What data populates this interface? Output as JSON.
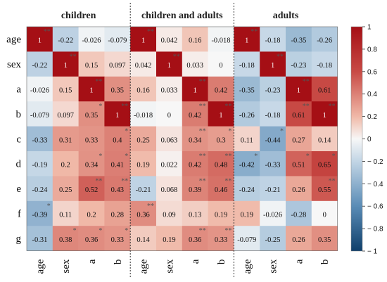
{
  "chart_data": {
    "type": "heatmap",
    "panels": [
      {
        "title": "children",
        "columns": [
          "age",
          "sex",
          "a",
          "b"
        ],
        "values": [
          [
            1,
            -0.22,
            -0.026,
            -0.079
          ],
          [
            -0.22,
            1,
            0.15,
            0.097
          ],
          [
            -0.026,
            0.15,
            1,
            0.35
          ],
          [
            -0.079,
            0.097,
            0.35,
            1
          ],
          [
            -0.33,
            0.31,
            0.33,
            0.4
          ],
          [
            -0.19,
            0.2,
            0.34,
            0.41
          ],
          [
            -0.24,
            0.25,
            0.52,
            0.43
          ],
          [
            -0.39,
            0.11,
            0.2,
            0.28
          ],
          [
            -0.31,
            0.38,
            0.36,
            0.33
          ]
        ],
        "labels": [
          [
            "1",
            "-0.22",
            "-0.026",
            "-0.079"
          ],
          [
            "-0.22",
            "1",
            "0.15",
            "0.097"
          ],
          [
            "-0.026",
            "0.15",
            "1",
            "0.35"
          ],
          [
            "-0.079",
            "0.097",
            "0.35",
            "1"
          ],
          [
            "-0.33",
            "0.31",
            "0.33",
            "0.4"
          ],
          [
            "-0.19",
            "0.2",
            "0.34",
            "0.41"
          ],
          [
            "-0.24",
            "0.25",
            "0.52",
            "0.43"
          ],
          [
            "-0.39",
            "0.11",
            "0.2",
            "0.28"
          ],
          [
            "-0.31",
            "0.38",
            "0.36",
            "0.33"
          ]
        ],
        "stars": [
          [
            "**",
            "",
            "",
            ""
          ],
          [
            "",
            "**",
            "",
            ""
          ],
          [
            "",
            "",
            "**",
            ""
          ],
          [
            "",
            "",
            "*",
            "**"
          ],
          [
            "",
            "",
            "",
            "*"
          ],
          [
            "",
            "",
            "*",
            "*"
          ],
          [
            "",
            "",
            "**",
            "**"
          ],
          [
            "*",
            "",
            "",
            ""
          ],
          [
            "",
            "*",
            "*",
            "*"
          ]
        ]
      },
      {
        "title": "children and adults",
        "columns": [
          "age",
          "sex",
          "a",
          "b"
        ],
        "values": [
          [
            1,
            0.042,
            0.16,
            -0.018
          ],
          [
            0.042,
            1,
            0.033,
            0
          ],
          [
            0.16,
            0.033,
            1,
            0.42
          ],
          [
            -0.018,
            0,
            0.42,
            1
          ],
          [
            0.25,
            0.063,
            0.34,
            0.3
          ],
          [
            0.19,
            0.022,
            0.42,
            0.48
          ],
          [
            -0.21,
            0.068,
            0.39,
            0.46
          ],
          [
            0.36,
            0.09,
            0.13,
            0.19
          ],
          [
            0.14,
            0.19,
            0.36,
            0.33
          ]
        ],
        "labels": [
          [
            "1",
            "0.042",
            "0.16",
            "-0.018"
          ],
          [
            "0.042",
            "1",
            "0.033",
            "0"
          ],
          [
            "0.16",
            "0.033",
            "1",
            "0.42"
          ],
          [
            "-0.018",
            "0",
            "0.42",
            "1"
          ],
          [
            "0.25",
            "0.063",
            "0.34",
            "0.3"
          ],
          [
            "0.19",
            "0.022",
            "0.42",
            "0.48"
          ],
          [
            "-0.21",
            "0.068",
            "0.39",
            "0.46"
          ],
          [
            "0.36",
            "0.09",
            "0.13",
            "0.19"
          ],
          [
            "0.14",
            "0.19",
            "0.36",
            "0.33"
          ]
        ],
        "stars": [
          [
            "**",
            "",
            "",
            ""
          ],
          [
            "",
            "**",
            "",
            ""
          ],
          [
            "",
            "",
            "**",
            ""
          ],
          [
            "",
            "",
            "**",
            "**"
          ],
          [
            "",
            "",
            "**",
            "*"
          ],
          [
            "",
            "",
            "**",
            "**"
          ],
          [
            "",
            "",
            "**",
            "**"
          ],
          [
            "**",
            "",
            "",
            ""
          ],
          [
            "",
            "",
            "**",
            "**"
          ]
        ]
      },
      {
        "title": "adults",
        "columns": [
          "age",
          "sex",
          "a",
          "b"
        ],
        "values": [
          [
            1,
            -0.18,
            -0.35,
            -0.26
          ],
          [
            -0.18,
            1,
            -0.23,
            -0.18
          ],
          [
            -0.35,
            -0.23,
            1,
            0.61
          ],
          [
            -0.26,
            -0.18,
            0.61,
            1
          ],
          [
            0.11,
            -0.44,
            0.27,
            0.14
          ],
          [
            -0.42,
            -0.33,
            0.51,
            0.65
          ],
          [
            -0.24,
            -0.21,
            0.26,
            0.55
          ],
          [
            0.19,
            -0.026,
            -0.28,
            0
          ],
          [
            -0.079,
            -0.25,
            0.26,
            0.35
          ]
        ],
        "labels": [
          [
            "1",
            "-0.18",
            "-0.35",
            "-0.26"
          ],
          [
            "-0.18",
            "1",
            "-0.23",
            "-0.18"
          ],
          [
            "-0.35",
            "-0.23",
            "1",
            "0.61"
          ],
          [
            "-0.26",
            "-0.18",
            "0.61",
            "1"
          ],
          [
            "0.11",
            "-0.44",
            "0.27",
            "0.14"
          ],
          [
            "-0.42",
            "-0.33",
            "0.51",
            "0.65"
          ],
          [
            "-0.24",
            "-0.21",
            "0.26",
            "0.55"
          ],
          [
            "0.19",
            "-0.026",
            "-0.28",
            "0"
          ],
          [
            "-0.079",
            "-0.25",
            "0.26",
            "0.35"
          ]
        ],
        "stars": [
          [
            "**",
            "",
            "",
            ""
          ],
          [
            "",
            "**",
            "",
            ""
          ],
          [
            "",
            "",
            "**",
            ""
          ],
          [
            "",
            "",
            "**",
            "**"
          ],
          [
            "",
            "*",
            "",
            ""
          ],
          [
            "*",
            "",
            "*",
            "*"
          ],
          [
            "",
            "",
            "",
            "**"
          ],
          [
            "",
            "",
            "",
            ""
          ],
          [
            "",
            "",
            "",
            ""
          ]
        ]
      }
    ],
    "rows": [
      "age",
      "sex",
      "a",
      "b",
      "c",
      "d",
      "e",
      "f",
      "g"
    ],
    "colorbar": {
      "range": [
        -1,
        1
      ],
      "ticks": [
        1,
        0.8,
        0.6,
        0.4,
        0.2,
        0,
        -0.2,
        -0.4,
        -0.6,
        -0.8,
        -1
      ],
      "tick_labels": [
        "1",
        "0.8",
        "0.6",
        "0.4",
        "0.2",
        "0",
        "− 0.2",
        "− 0.4",
        "− 0.6",
        "− 0.8",
        "− 1"
      ],
      "colormap": "RdBu_r",
      "colors": {
        "negative": "#1f5a8c",
        "neutral": "#f7f7f7",
        "positive": "#a50f15"
      }
    },
    "panel_separator": "dotted"
  }
}
